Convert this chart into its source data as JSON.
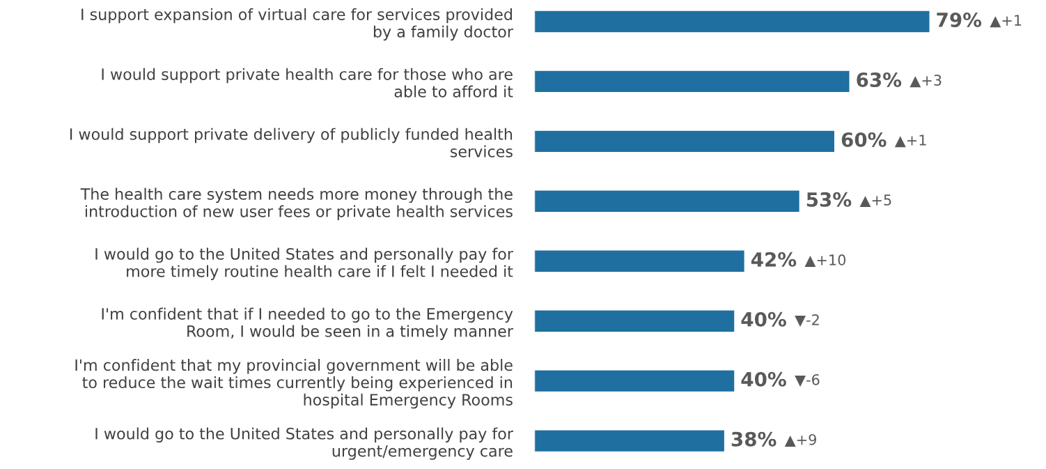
{
  "chart_data": {
    "type": "bar",
    "orientation": "horizontal",
    "categories": [
      "I support expansion of virtual care for services provided\nby a family doctor",
      "I would support private health care for those who are\nable to afford it",
      "I would support private delivery of publicly funded health\nservices",
      "The health care system needs more money through the\nintroduction of new user fees or private health services",
      "I would go to the United States and personally pay for\nmore timely routine health care if I felt I needed it",
      "I'm confident that if I needed to go to the Emergency\nRoom, I would be seen in a timely manner",
      "I'm confident that my provincial government will be able\nto reduce the wait times currently being experienced in\nhospital Emergency Rooms",
      "I would go to the United States and personally pay for\nurgent/emergency care"
    ],
    "values": [
      79,
      63,
      60,
      53,
      42,
      40,
      40,
      38
    ],
    "value_labels": [
      "79%",
      "63%",
      "60%",
      "53%",
      "42%",
      "40%",
      "40%",
      "38%"
    ],
    "color": "#1f6fa0",
    "tick_labels": "y",
    "annotations": [
      "▲+1",
      "▲+3",
      "▲+1",
      "▲+5",
      "▲+10",
      "▼-2",
      "▼-6",
      "▲+9"
    ]
  }
}
